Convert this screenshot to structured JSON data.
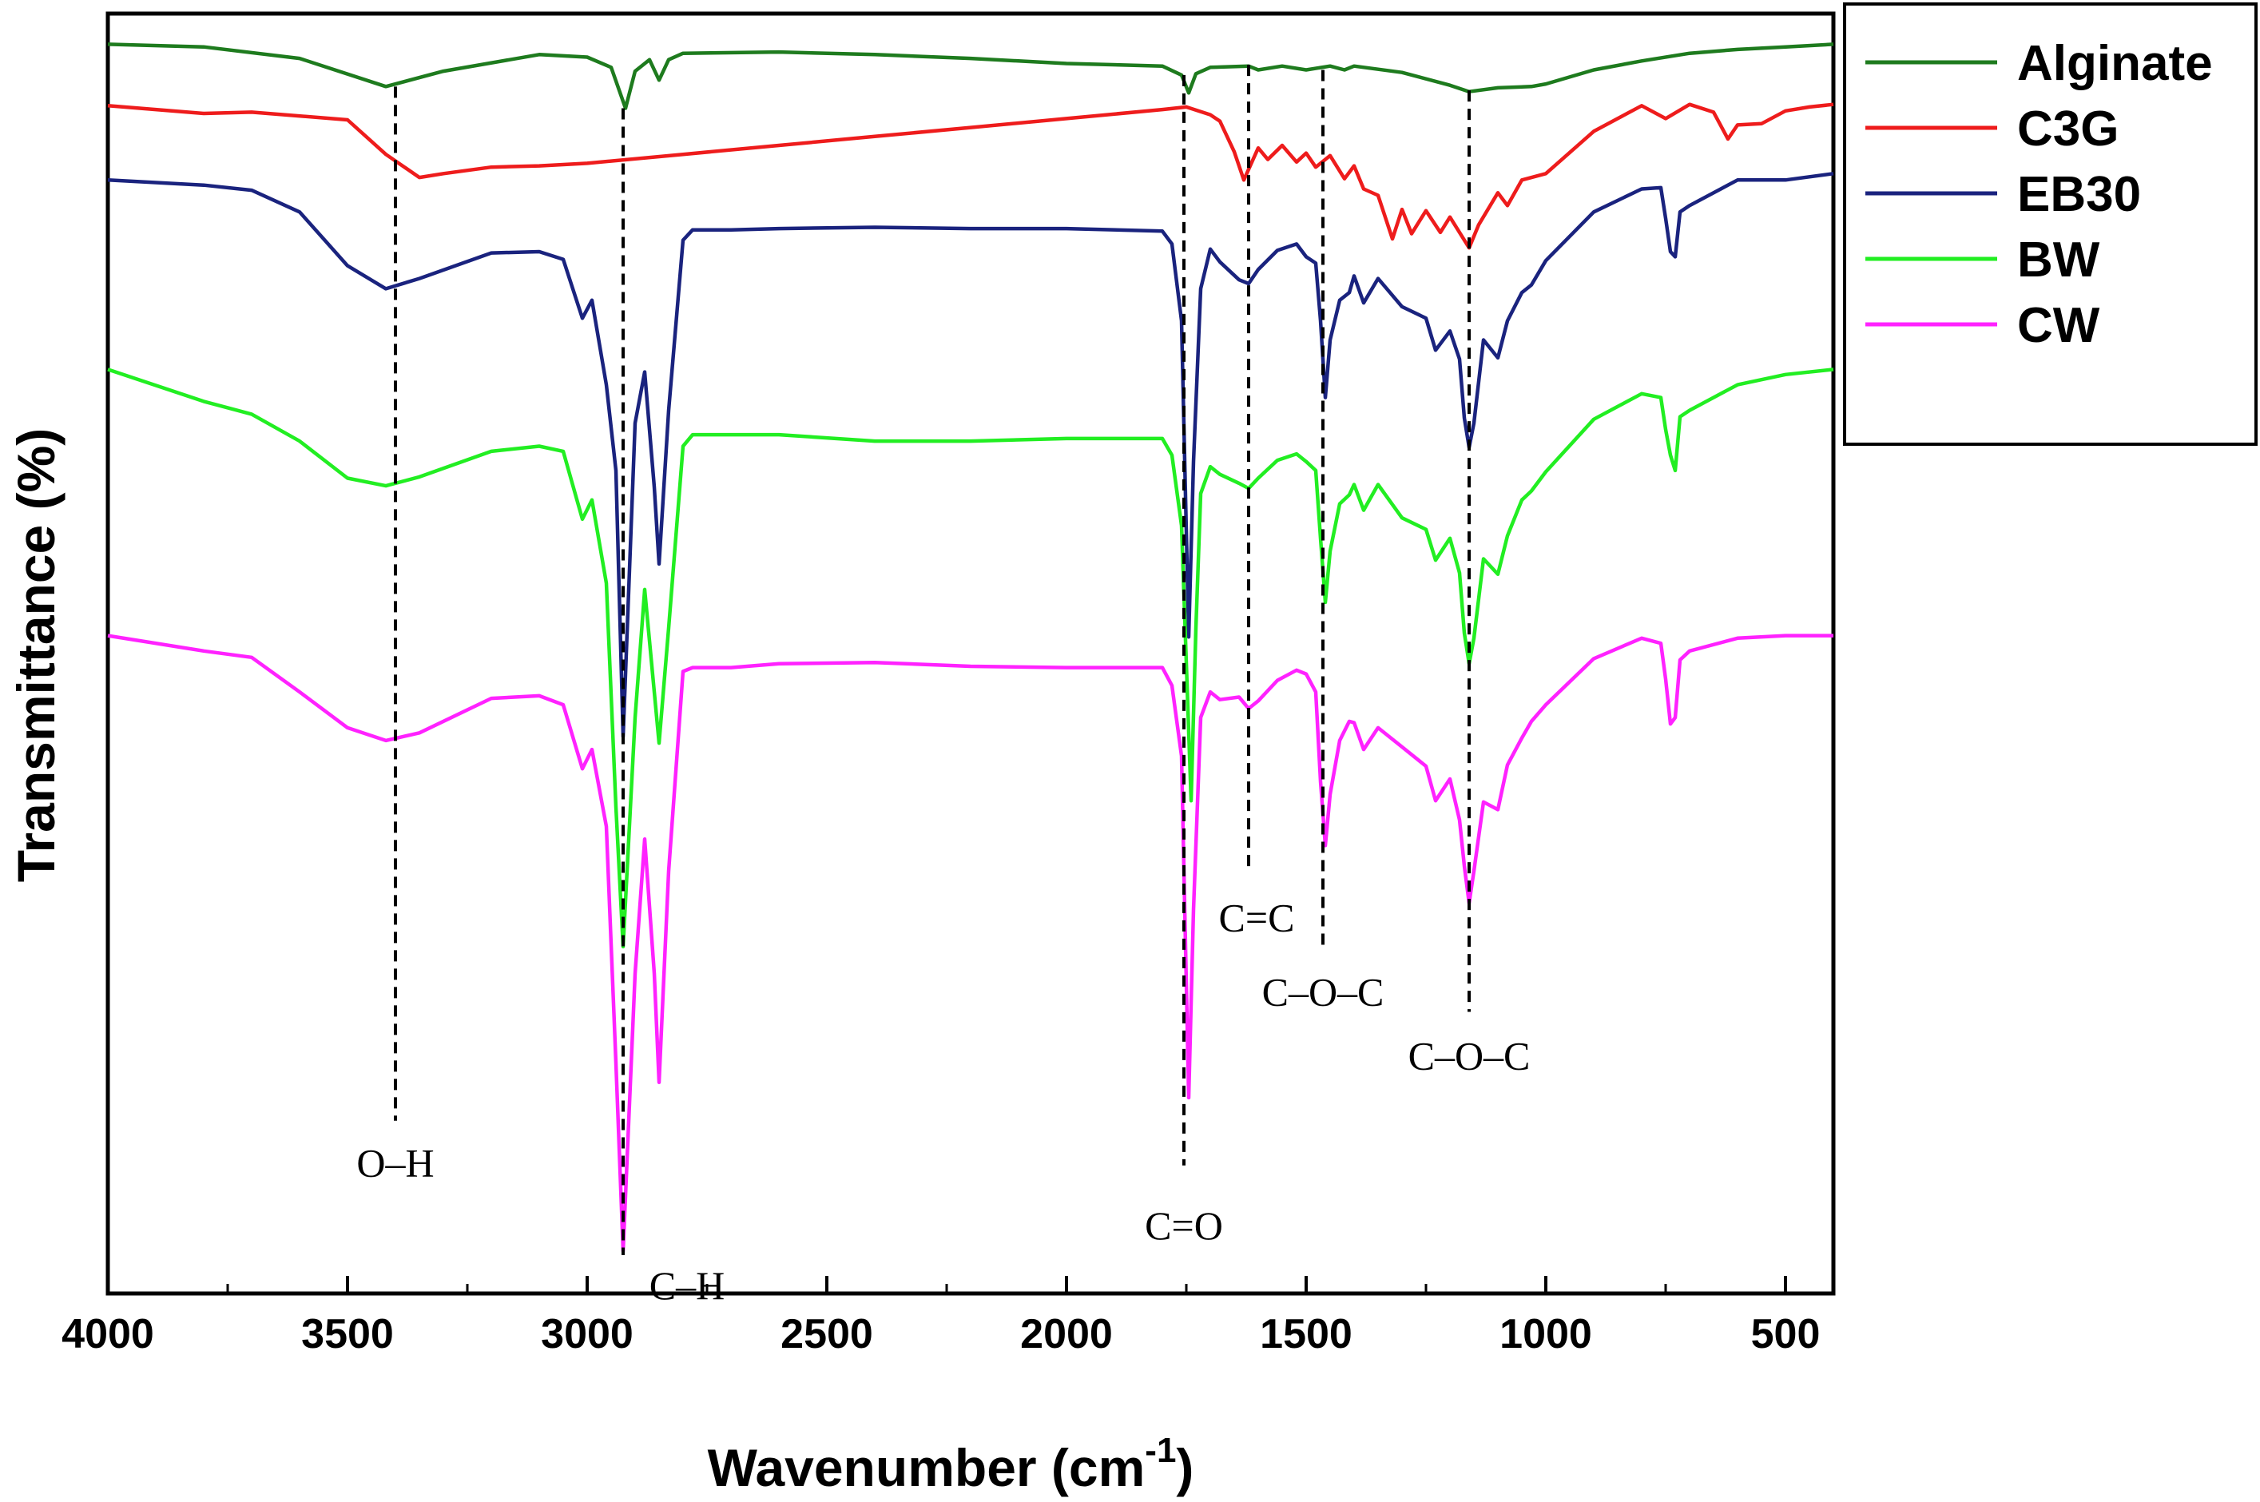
{
  "chart_data": {
    "type": "line",
    "title": "",
    "xlabel": "Wavenumber (cm",
    "xlabel_superscript": "-1",
    "xlabel_close": ")",
    "ylabel": "Transmittance (%)",
    "xlim": [
      4000,
      400
    ],
    "ylim": [
      0,
      100
    ],
    "x_reversed": true,
    "grid": false,
    "legend_position": "top-right",
    "xticks": [
      4000,
      3500,
      3000,
      2500,
      2000,
      1500,
      1000,
      500
    ],
    "xtick_labels": [
      "4000",
      "3500",
      "3000",
      "2500",
      "2000",
      "1500",
      "1000",
      "500"
    ],
    "series": [
      {
        "name": "Alginate",
        "color": "#1e7b1e",
        "x": [
          4000,
          3800,
          3600,
          3420,
          3300,
          3100,
          3000,
          2950,
          2920,
          2900,
          2870,
          2850,
          2830,
          2800,
          2600,
          2400,
          2200,
          2000,
          1800,
          1760,
          1745,
          1730,
          1700,
          1620,
          1600,
          1550,
          1500,
          1450,
          1420,
          1400,
          1300,
          1200,
          1160,
          1100,
          1030,
          1000,
          900,
          800,
          700,
          600,
          500,
          400
        ],
        "y": [
          97.6,
          97.4,
          96.5,
          94.3,
          95.5,
          96.8,
          96.6,
          95.8,
          92.6,
          95.5,
          96.4,
          94.8,
          96.4,
          96.9,
          97.0,
          96.8,
          96.5,
          96.1,
          95.9,
          95.2,
          93.8,
          95.3,
          95.8,
          95.9,
          95.6,
          95.9,
          95.6,
          95.9,
          95.6,
          95.9,
          95.4,
          94.4,
          93.9,
          94.2,
          94.3,
          94.5,
          95.6,
          96.3,
          96.9,
          97.2,
          97.4,
          97.6
        ]
      },
      {
        "name": "C3G",
        "color": "#ee1c1c",
        "x": [
          4000,
          3800,
          3700,
          3500,
          3420,
          3350,
          3300,
          3200,
          3100,
          3000,
          2800,
          2600,
          2400,
          2200,
          2000,
          1800,
          1750,
          1700,
          1680,
          1650,
          1630,
          1600,
          1580,
          1550,
          1520,
          1500,
          1480,
          1450,
          1420,
          1400,
          1380,
          1350,
          1320,
          1300,
          1280,
          1250,
          1220,
          1200,
          1180,
          1160,
          1140,
          1100,
          1080,
          1050,
          1000,
          900,
          800,
          750,
          700,
          650,
          620,
          600,
          550,
          500,
          450,
          400
        ],
        "y": [
          92.8,
          92.2,
          92.3,
          91.7,
          89.0,
          87.2,
          87.5,
          88.0,
          88.1,
          88.3,
          89.0,
          89.7,
          90.4,
          91.1,
          91.8,
          92.5,
          92.7,
          92.1,
          91.6,
          89.2,
          87.0,
          89.5,
          88.6,
          89.7,
          88.4,
          89.1,
          88.0,
          88.9,
          87.1,
          88.1,
          86.3,
          85.8,
          82.4,
          84.7,
          82.8,
          84.6,
          82.9,
          84.1,
          82.9,
          81.7,
          83.5,
          86.0,
          85.0,
          87.0,
          87.5,
          90.8,
          92.8,
          91.8,
          92.9,
          92.3,
          90.2,
          91.3,
          91.4,
          92.4,
          92.7,
          92.9
        ]
      },
      {
        "name": "EB30",
        "color": "#1a237e",
        "x": [
          4000,
          3800,
          3700,
          3600,
          3500,
          3420,
          3350,
          3200,
          3100,
          3050,
          3010,
          2990,
          2960,
          2940,
          2925,
          2900,
          2880,
          2860,
          2850,
          2830,
          2800,
          2780,
          2700,
          2600,
          2400,
          2200,
          2000,
          1800,
          1780,
          1760,
          1745,
          1735,
          1720,
          1700,
          1680,
          1640,
          1620,
          1600,
          1560,
          1520,
          1500,
          1480,
          1470,
          1460,
          1450,
          1430,
          1410,
          1400,
          1380,
          1350,
          1300,
          1250,
          1230,
          1200,
          1180,
          1170,
          1160,
          1150,
          1130,
          1100,
          1080,
          1050,
          1030,
          1000,
          900,
          800,
          760,
          750,
          740,
          730,
          720,
          700,
          600,
          500,
          400
        ],
        "y": [
          87.0,
          86.6,
          86.2,
          84.5,
          80.3,
          78.5,
          79.3,
          81.3,
          81.4,
          80.8,
          76.2,
          77.6,
          71.0,
          64.3,
          43.5,
          68.0,
          72.0,
          63.0,
          57.0,
          69.0,
          82.3,
          83.1,
          83.1,
          83.2,
          83.3,
          83.2,
          83.2,
          83.0,
          82.0,
          76.0,
          51.3,
          65.0,
          78.5,
          81.6,
          80.6,
          79.2,
          78.9,
          80.0,
          81.5,
          82.0,
          81.0,
          80.5,
          76.0,
          70.0,
          74.5,
          77.6,
          78.2,
          79.5,
          77.4,
          79.3,
          77.1,
          76.2,
          73.7,
          75.2,
          73.0,
          68.4,
          66.1,
          68.0,
          74.5,
          73.1,
          76.0,
          78.2,
          78.8,
          80.7,
          84.5,
          86.3,
          86.4,
          84.0,
          81.4,
          81.0,
          84.5,
          85.0,
          87.0,
          87.0,
          87.5
        ]
      },
      {
        "name": "BW",
        "color": "#22ee22",
        "x": [
          4000,
          3800,
          3700,
          3600,
          3500,
          3420,
          3350,
          3200,
          3100,
          3050,
          3010,
          2990,
          2960,
          2940,
          2925,
          2900,
          2880,
          2860,
          2850,
          2830,
          2800,
          2780,
          2700,
          2600,
          2400,
          2200,
          2000,
          1800,
          1780,
          1760,
          1740,
          1730,
          1720,
          1700,
          1680,
          1640,
          1620,
          1600,
          1560,
          1520,
          1500,
          1480,
          1470,
          1460,
          1450,
          1430,
          1410,
          1400,
          1380,
          1350,
          1300,
          1250,
          1230,
          1200,
          1180,
          1170,
          1160,
          1150,
          1130,
          1100,
          1080,
          1050,
          1030,
          1000,
          900,
          800,
          760,
          750,
          740,
          730,
          720,
          700,
          600,
          500,
          400
        ],
        "y": [
          72.2,
          69.7,
          68.7,
          66.6,
          63.7,
          63.1,
          63.8,
          65.8,
          66.2,
          65.8,
          60.5,
          62.0,
          55.5,
          38.0,
          27.1,
          45.0,
          55.0,
          47.0,
          43.0,
          52.0,
          66.2,
          67.1,
          67.1,
          67.1,
          66.6,
          66.6,
          66.8,
          66.8,
          65.5,
          60.0,
          38.5,
          52.0,
          62.5,
          64.6,
          64.0,
          63.3,
          62.9,
          63.7,
          65.1,
          65.6,
          65.0,
          64.3,
          59.0,
          54.0,
          58.0,
          61.7,
          62.4,
          63.2,
          61.2,
          63.2,
          60.6,
          59.7,
          57.3,
          59.0,
          56.3,
          51.6,
          49.2,
          51.2,
          57.4,
          56.2,
          59.2,
          62.0,
          62.7,
          64.2,
          68.3,
          70.3,
          70.0,
          67.5,
          65.5,
          64.3,
          68.5,
          69.0,
          71.0,
          71.8,
          72.2
        ]
      },
      {
        "name": "CW",
        "color": "#ff22ff",
        "x": [
          4000,
          3800,
          3700,
          3600,
          3500,
          3420,
          3350,
          3200,
          3100,
          3050,
          3010,
          2990,
          2960,
          2940,
          2925,
          2900,
          2880,
          2860,
          2850,
          2830,
          2800,
          2780,
          2700,
          2600,
          2400,
          2200,
          2000,
          1800,
          1780,
          1760,
          1745,
          1735,
          1720,
          1700,
          1680,
          1640,
          1620,
          1600,
          1560,
          1520,
          1500,
          1480,
          1470,
          1460,
          1450,
          1430,
          1410,
          1400,
          1380,
          1350,
          1300,
          1250,
          1230,
          1200,
          1180,
          1170,
          1160,
          1150,
          1130,
          1100,
          1080,
          1050,
          1030,
          1000,
          900,
          800,
          760,
          750,
          740,
          730,
          720,
          700,
          600,
          500,
          400
        ],
        "y": [
          51.4,
          50.2,
          49.7,
          47.0,
          44.2,
          43.2,
          43.8,
          46.5,
          46.7,
          46.0,
          41.0,
          42.5,
          36.5,
          18.0,
          3.3,
          25.0,
          35.5,
          25.0,
          16.5,
          33.0,
          48.6,
          48.9,
          48.9,
          49.2,
          49.3,
          49.0,
          48.9,
          48.9,
          47.5,
          42.0,
          15.3,
          30.0,
          45.0,
          47.0,
          46.4,
          46.6,
          45.7,
          46.3,
          47.9,
          48.7,
          48.4,
          47.0,
          40.0,
          35.0,
          39.0,
          43.2,
          44.7,
          44.6,
          42.5,
          44.2,
          42.7,
          41.2,
          38.5,
          40.2,
          37.0,
          33.4,
          30.5,
          33.0,
          38.4,
          37.8,
          41.3,
          43.4,
          44.7,
          46.0,
          49.6,
          51.2,
          50.8,
          48.0,
          44.5,
          45.0,
          49.5,
          50.2,
          51.2,
          51.4,
          51.4
        ]
      }
    ],
    "annotations": [
      {
        "label": "O–H",
        "x": 3400,
        "line_from_y": 94.3,
        "line_to_y": 13.5
      },
      {
        "label": "C–H",
        "x": 2925,
        "line_from_y": 92.6,
        "line_to_y": 3.0
      },
      {
        "label": "C=O",
        "x": 1755,
        "line_from_y": 95.2,
        "line_to_y": 10.0
      },
      {
        "label": "C=C",
        "x": 1620,
        "line_from_y": 96.0,
        "line_to_y": 33.0
      },
      {
        "label": "C–O–C",
        "x": 1465,
        "line_from_y": 95.6,
        "line_to_y": 27.0
      },
      {
        "label": "C–O–C",
        "x": 1160,
        "line_from_y": 94.0,
        "line_to_y": 22.0
      }
    ]
  }
}
